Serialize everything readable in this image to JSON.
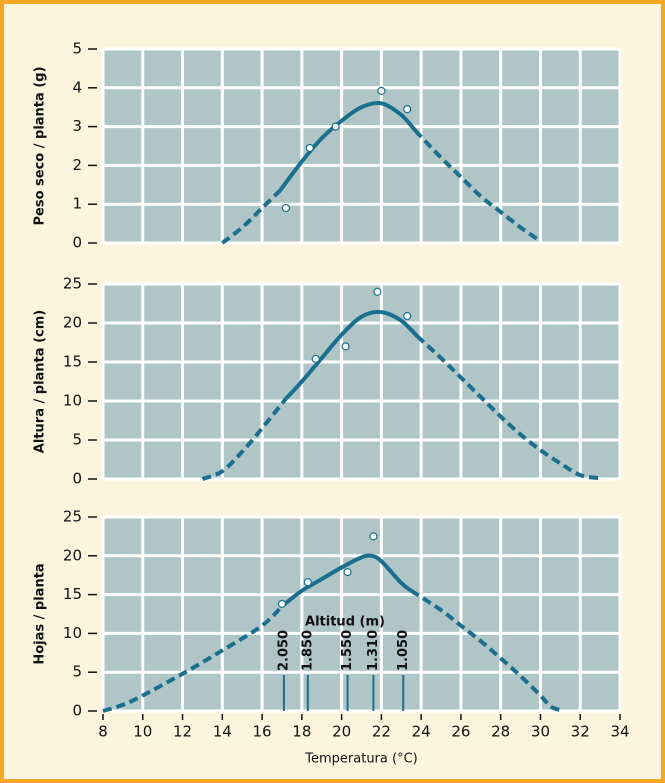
{
  "chart_data": [
    {
      "type": "line",
      "ylabel": "Peso seco / planta (g)",
      "xlim": [
        8,
        34
      ],
      "xticks": [
        8,
        10,
        12,
        14,
        16,
        18,
        20,
        22,
        24,
        26,
        28,
        30,
        32,
        34
      ],
      "show_xtick_labels": false,
      "ylim": [
        0,
        5
      ],
      "yticks": [
        0,
        1,
        2,
        3,
        4,
        5
      ],
      "grid": true,
      "color": "#1a6f8f",
      "series": [
        {
          "style": "dashed",
          "x": [
            14,
            15,
            16,
            16.9
          ],
          "values": [
            0,
            0.4,
            0.9,
            1.35
          ]
        },
        {
          "style": "solid",
          "x": [
            16.9,
            18,
            19,
            20,
            21,
            22,
            23,
            23.7
          ],
          "values": [
            1.35,
            2.1,
            2.7,
            3.15,
            3.5,
            3.6,
            3.3,
            2.9
          ]
        },
        {
          "style": "dashed",
          "x": [
            23.7,
            25,
            26,
            27,
            28,
            29,
            30
          ],
          "values": [
            2.9,
            2.2,
            1.7,
            1.2,
            0.8,
            0.4,
            0.05
          ]
        }
      ],
      "scatter": {
        "x": [
          17.2,
          18.4,
          19.7,
          22.0,
          23.3
        ],
        "values": [
          0.9,
          2.45,
          3.0,
          3.92,
          3.45
        ]
      }
    },
    {
      "type": "line",
      "ylabel": "Altura / planta (cm)",
      "xlim": [
        8,
        34
      ],
      "xticks": [
        8,
        10,
        12,
        14,
        16,
        18,
        20,
        22,
        24,
        26,
        28,
        30,
        32,
        34
      ],
      "show_xtick_labels": false,
      "ylim": [
        0,
        25
      ],
      "yticks": [
        0,
        5,
        10,
        15,
        20,
        25
      ],
      "grid": true,
      "color": "#1a6f8f",
      "series": [
        {
          "style": "dashed",
          "x": [
            13,
            14,
            15,
            16,
            17.2
          ],
          "values": [
            0,
            1,
            3.5,
            6.5,
            10.3
          ]
        },
        {
          "style": "solid",
          "x": [
            17.2,
            18,
            19,
            20,
            21,
            22,
            23,
            23.8
          ],
          "values": [
            10.3,
            12.5,
            15.5,
            18.5,
            20.8,
            21.4,
            20.3,
            18.3
          ]
        },
        {
          "style": "dashed",
          "x": [
            23.8,
            25,
            26,
            27,
            28,
            29,
            30,
            31,
            32,
            33
          ],
          "values": [
            18.3,
            15.5,
            13,
            10.5,
            8,
            5.7,
            3.7,
            2,
            0.5,
            0.1
          ]
        }
      ],
      "scatter": {
        "x": [
          18.7,
          20.2,
          21.8,
          23.3
        ],
        "values": [
          15.4,
          17,
          24,
          20.9
        ]
      }
    },
    {
      "type": "line",
      "ylabel": "Hojas / planta",
      "xlabel": "Temperatura (°C)",
      "xlim": [
        8,
        34
      ],
      "xticks": [
        8,
        10,
        12,
        14,
        16,
        18,
        20,
        22,
        24,
        26,
        28,
        30,
        32,
        34
      ],
      "show_xtick_labels": true,
      "ylim": [
        0,
        25
      ],
      "yticks": [
        0,
        5,
        10,
        15,
        20,
        25
      ],
      "grid": true,
      "color": "#1a6f8f",
      "series": [
        {
          "style": "dashed",
          "x": [
            8,
            9,
            10,
            12,
            14,
            16,
            17
          ],
          "values": [
            0,
            0.8,
            2,
            4.8,
            7.8,
            11,
            13.5
          ]
        },
        {
          "style": "solid",
          "x": [
            17,
            18,
            19,
            20,
            21,
            21.5,
            22,
            23,
            23.5
          ],
          "values": [
            13.5,
            15.5,
            17,
            18.5,
            19.8,
            20,
            19.3,
            16.5,
            15.5
          ]
        },
        {
          "style": "dashed",
          "x": [
            23.5,
            25,
            26,
            27,
            28,
            29,
            30,
            30.5,
            31
          ],
          "values": [
            15.5,
            13,
            11,
            9,
            6.8,
            4.5,
            2,
            0.6,
            0.1
          ]
        }
      ],
      "scatter": {
        "x": [
          17,
          18.3,
          20.3,
          21.6
        ],
        "values": [
          13.8,
          16.6,
          17.9,
          22.5
        ]
      },
      "annotations": {
        "title": "Altitud (m)",
        "items": [
          {
            "x": 17.1,
            "label": "2.050"
          },
          {
            "x": 18.3,
            "label": "1.850"
          },
          {
            "x": 20.3,
            "label": "1.550"
          },
          {
            "x": 21.6,
            "label": "1.310"
          },
          {
            "x": 23.1,
            "label": "1.050"
          }
        ]
      }
    }
  ]
}
